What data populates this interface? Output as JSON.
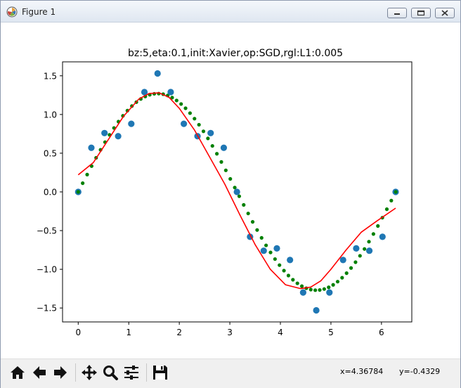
{
  "window": {
    "title": "Figure 1",
    "buttons": {
      "minimize": "minimize-icon",
      "maximize": "maximize-icon",
      "close": "close-icon"
    }
  },
  "chart_data": {
    "type": "scatter",
    "title": "bz:5,eta:0.1,init:Xavier,op:SGD,rgl:L1:0.005",
    "xlabel": "",
    "ylabel": "",
    "xlim": [
      -0.31,
      6.6
    ],
    "ylim": [
      -1.68,
      1.68
    ],
    "xticks": [
      0,
      1,
      2,
      3,
      4,
      5,
      6
    ],
    "yticks": [
      1.5,
      1.0,
      0.5,
      0.0,
      -0.5,
      -1.0,
      -1.5
    ],
    "ytick_labels": [
      "1.5",
      "1.0",
      "0.5",
      "0.0",
      "−0.5",
      "−1.0",
      "−1.5"
    ],
    "grid": false,
    "colors": {
      "samples": "#1f77b4",
      "target": "#008000",
      "fit": "#ff0000"
    },
    "series": [
      {
        "kind": "scatter-large",
        "x": [
          0.0,
          0.26,
          0.52,
          0.79,
          1.05,
          1.31,
          1.57,
          1.83,
          2.09,
          2.36,
          2.62,
          2.88,
          3.14,
          3.4,
          3.67,
          3.93,
          4.19,
          4.45,
          4.71,
          4.97,
          5.24,
          5.5,
          5.76,
          6.02,
          6.28
        ],
        "y": [
          0.0,
          0.57,
          0.76,
          0.72,
          0.88,
          1.29,
          1.53,
          1.29,
          0.88,
          0.72,
          0.76,
          0.57,
          0.0,
          -0.58,
          -0.76,
          -0.73,
          -0.88,
          -1.3,
          -1.53,
          -1.3,
          -0.88,
          -0.73,
          -0.76,
          -0.58,
          0.0
        ]
      },
      {
        "kind": "scatter-small",
        "function": "1.27*sin(x)",
        "x_start": 0.0,
        "x_end": 6.283,
        "count": 72
      },
      {
        "kind": "line",
        "x": [
          0.0,
          0.3,
          0.6,
          0.9,
          1.2,
          1.4,
          1.6,
          1.8,
          2.0,
          2.3,
          2.6,
          2.9,
          3.2,
          3.5,
          3.8,
          4.1,
          4.4,
          4.6,
          4.8,
          5.0,
          5.3,
          5.6,
          5.9,
          6.28
        ],
        "y": [
          0.22,
          0.38,
          0.68,
          0.98,
          1.2,
          1.27,
          1.28,
          1.22,
          1.08,
          0.8,
          0.45,
          0.1,
          -0.3,
          -0.68,
          -1.0,
          -1.2,
          -1.25,
          -1.23,
          -1.15,
          -1.0,
          -0.75,
          -0.52,
          -0.38,
          -0.21
        ]
      }
    ]
  },
  "toolbar": {
    "items": [
      "home-icon",
      "back-arrow-icon",
      "forward-arrow-icon",
      "pan-icon",
      "zoom-icon",
      "configure-subplots-icon",
      "save-icon"
    ],
    "coord_x": "x=4.36784",
    "coord_y": "y=-0.4329"
  }
}
